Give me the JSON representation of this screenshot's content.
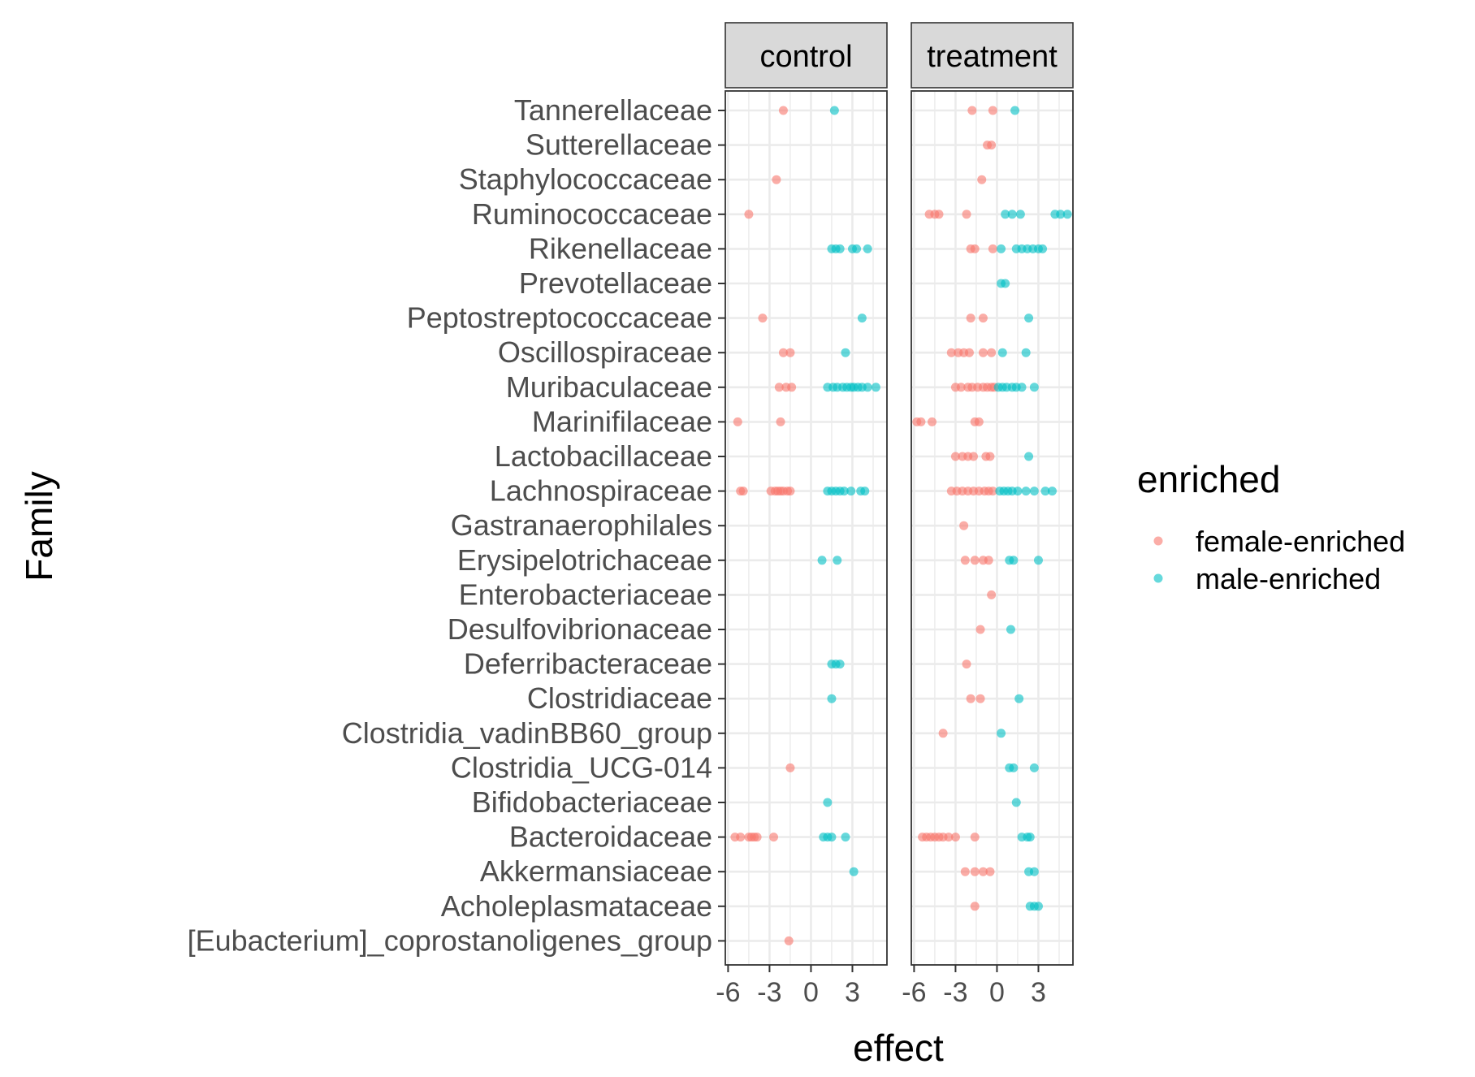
{
  "chart_data": {
    "type": "scatter",
    "xlabel": "effect",
    "ylabel": "Family",
    "xlim": [
      -6.2,
      5.5
    ],
    "x_ticks": [
      -6,
      -3,
      0,
      3
    ],
    "x_tick_labels": [
      "-6",
      "-3",
      "0",
      "3"
    ],
    "grid": true,
    "legend_position": "right",
    "legend": {
      "title": "enriched",
      "entries": [
        {
          "label": "female-enriched",
          "color": "#F8766D"
        },
        {
          "label": "male-enriched",
          "color": "#00BFC4"
        }
      ]
    },
    "categories": [
      "Tannerellaceae",
      "Sutterellaceae",
      "Staphylococcaceae",
      "Ruminococcaceae",
      "Rikenellaceae",
      "Prevotellaceae",
      "Peptostreptococcaceae",
      "Oscillospiraceae",
      "Muribaculaceae",
      "Marinifilaceae",
      "Lactobacillaceae",
      "Lachnospiraceae",
      "Gastranaerophilales",
      "Erysipelotrichaceae",
      "Enterobacteriaceae",
      "Desulfovibrionaceae",
      "Deferribacteraceae",
      "Clostridiaceae",
      "Clostridia_vadinBB60_group",
      "Clostridia_UCG-014",
      "Bifidobacteriaceae",
      "Bacteroidaceae",
      "Akkermansiaceae",
      "Acholeplasmataceae",
      "[Eubacterium]_coprostanoligenes_group"
    ],
    "facets": [
      {
        "label": "control",
        "female": [
          [
            "Tannerellaceae",
            -2.0
          ],
          [
            "Staphylococcaceae",
            -2.5
          ],
          [
            "Ruminococcaceae",
            -4.5
          ],
          [
            "Peptostreptococcaceae",
            -3.5
          ],
          [
            "Oscillospiraceae",
            -2.0
          ],
          [
            "Oscillospiraceae",
            -1.5
          ],
          [
            "Muribaculaceae",
            -2.3
          ],
          [
            "Muribaculaceae",
            -1.8
          ],
          [
            "Muribaculaceae",
            -1.4
          ],
          [
            "Marinifilaceae",
            -5.3
          ],
          [
            "Marinifilaceae",
            -2.2
          ],
          [
            "Lachnospiraceae",
            -5.1
          ],
          [
            "Lachnospiraceae",
            -4.9
          ],
          [
            "Lachnospiraceae",
            -2.9
          ],
          [
            "Lachnospiraceae",
            -2.6
          ],
          [
            "Lachnospiraceae",
            -2.4
          ],
          [
            "Lachnospiraceae",
            -2.2
          ],
          [
            "Lachnospiraceae",
            -2.0
          ],
          [
            "Lachnospiraceae",
            -1.7
          ],
          [
            "Lachnospiraceae",
            -1.5
          ],
          [
            "Clostridia_UCG-014",
            -1.5
          ],
          [
            "Bacteroidaceae",
            -5.5
          ],
          [
            "Bacteroidaceae",
            -5.1
          ],
          [
            "Bacteroidaceae",
            -4.5
          ],
          [
            "Bacteroidaceae",
            -4.3
          ],
          [
            "Bacteroidaceae",
            -4.1
          ],
          [
            "Bacteroidaceae",
            -3.9
          ],
          [
            "Bacteroidaceae",
            -2.7
          ],
          [
            "[Eubacterium]_coprostanoligenes_group",
            -1.6
          ]
        ],
        "male": [
          [
            "Tannerellaceae",
            1.7
          ],
          [
            "Rikenellaceae",
            1.5
          ],
          [
            "Rikenellaceae",
            1.8
          ],
          [
            "Rikenellaceae",
            2.1
          ],
          [
            "Rikenellaceae",
            3.0
          ],
          [
            "Rikenellaceae",
            3.3
          ],
          [
            "Rikenellaceae",
            4.1
          ],
          [
            "Peptostreptococcaceae",
            3.7
          ],
          [
            "Oscillospiraceae",
            2.5
          ],
          [
            "Muribaculaceae",
            1.2
          ],
          [
            "Muribaculaceae",
            1.6
          ],
          [
            "Muribaculaceae",
            1.9
          ],
          [
            "Muribaculaceae",
            2.3
          ],
          [
            "Muribaculaceae",
            2.6
          ],
          [
            "Muribaculaceae",
            2.9
          ],
          [
            "Muribaculaceae",
            3.1
          ],
          [
            "Muribaculaceae",
            3.4
          ],
          [
            "Muribaculaceae",
            3.7
          ],
          [
            "Muribaculaceae",
            4.1
          ],
          [
            "Muribaculaceae",
            4.7
          ],
          [
            "Lachnospiraceae",
            1.2
          ],
          [
            "Lachnospiraceae",
            1.5
          ],
          [
            "Lachnospiraceae",
            1.8
          ],
          [
            "Lachnospiraceae",
            2.1
          ],
          [
            "Lachnospiraceae",
            2.4
          ],
          [
            "Lachnospiraceae",
            2.9
          ],
          [
            "Lachnospiraceae",
            3.6
          ],
          [
            "Lachnospiraceae",
            3.9
          ],
          [
            "Erysipelotrichaceae",
            0.8
          ],
          [
            "Erysipelotrichaceae",
            1.9
          ],
          [
            "Deferribacteraceae",
            1.5
          ],
          [
            "Deferribacteraceae",
            1.8
          ],
          [
            "Deferribacteraceae",
            2.1
          ],
          [
            "Clostridiaceae",
            1.5
          ],
          [
            "Bifidobacteriaceae",
            1.2
          ],
          [
            "Bacteroidaceae",
            0.9
          ],
          [
            "Bacteroidaceae",
            1.2
          ],
          [
            "Bacteroidaceae",
            1.5
          ],
          [
            "Bacteroidaceae",
            2.5
          ],
          [
            "Akkermansiaceae",
            3.1
          ]
        ]
      },
      {
        "label": "treatment",
        "female": [
          [
            "Tannerellaceae",
            -1.8
          ],
          [
            "Tannerellaceae",
            -0.3
          ],
          [
            "Sutterellaceae",
            -0.7
          ],
          [
            "Sutterellaceae",
            -0.4
          ],
          [
            "Staphylococcaceae",
            -1.1
          ],
          [
            "Ruminococcaceae",
            -4.9
          ],
          [
            "Ruminococcaceae",
            -4.5
          ],
          [
            "Ruminococcaceae",
            -4.2
          ],
          [
            "Ruminococcaceae",
            -2.2
          ],
          [
            "Rikenellaceae",
            -1.9
          ],
          [
            "Rikenellaceae",
            -1.6
          ],
          [
            "Rikenellaceae",
            -0.3
          ],
          [
            "Peptostreptococcaceae",
            -1.9
          ],
          [
            "Peptostreptococcaceae",
            -1.0
          ],
          [
            "Oscillospiraceae",
            -3.3
          ],
          [
            "Oscillospiraceae",
            -2.8
          ],
          [
            "Oscillospiraceae",
            -2.4
          ],
          [
            "Oscillospiraceae",
            -2.0
          ],
          [
            "Oscillospiraceae",
            -1.0
          ],
          [
            "Oscillospiraceae",
            -0.4
          ],
          [
            "Muribaculaceae",
            -3.0
          ],
          [
            "Muribaculaceae",
            -2.6
          ],
          [
            "Muribaculaceae",
            -2.1
          ],
          [
            "Muribaculaceae",
            -1.8
          ],
          [
            "Muribaculaceae",
            -1.4
          ],
          [
            "Muribaculaceae",
            -1.0
          ],
          [
            "Muribaculaceae",
            -0.7
          ],
          [
            "Muribaculaceae",
            -0.4
          ],
          [
            "Muribaculaceae",
            -0.2
          ],
          [
            "Marinifilaceae",
            -5.8
          ],
          [
            "Marinifilaceae",
            -5.5
          ],
          [
            "Marinifilaceae",
            -4.7
          ],
          [
            "Marinifilaceae",
            -1.6
          ],
          [
            "Marinifilaceae",
            -1.3
          ],
          [
            "Lactobacillaceae",
            -3.0
          ],
          [
            "Lactobacillaceae",
            -2.5
          ],
          [
            "Lactobacillaceae",
            -2.1
          ],
          [
            "Lactobacillaceae",
            -1.7
          ],
          [
            "Lactobacillaceae",
            -0.8
          ],
          [
            "Lactobacillaceae",
            -0.5
          ],
          [
            "Lachnospiraceae",
            -3.3
          ],
          [
            "Lachnospiraceae",
            -2.9
          ],
          [
            "Lachnospiraceae",
            -2.5
          ],
          [
            "Lachnospiraceae",
            -2.1
          ],
          [
            "Lachnospiraceae",
            -1.7
          ],
          [
            "Lachnospiraceae",
            -1.3
          ],
          [
            "Lachnospiraceae",
            -0.9
          ],
          [
            "Lachnospiraceae",
            -0.6
          ],
          [
            "Lachnospiraceae",
            -0.3
          ],
          [
            "Gastranaerophilales",
            -2.4
          ],
          [
            "Erysipelotrichaceae",
            -2.3
          ],
          [
            "Erysipelotrichaceae",
            -1.6
          ],
          [
            "Erysipelotrichaceae",
            -1.0
          ],
          [
            "Erysipelotrichaceae",
            -0.6
          ],
          [
            "Enterobacteriaceae",
            -0.4
          ],
          [
            "Desulfovibrionaceae",
            -1.2
          ],
          [
            "Deferribacteraceae",
            -2.2
          ],
          [
            "Clostridiaceae",
            -1.9
          ],
          [
            "Clostridiaceae",
            -1.2
          ],
          [
            "Clostridia_vadinBB60_group",
            -3.9
          ],
          [
            "Bacteroidaceae",
            -5.4
          ],
          [
            "Bacteroidaceae",
            -5.1
          ],
          [
            "Bacteroidaceae",
            -4.8
          ],
          [
            "Bacteroidaceae",
            -4.5
          ],
          [
            "Bacteroidaceae",
            -4.2
          ],
          [
            "Bacteroidaceae",
            -3.9
          ],
          [
            "Bacteroidaceae",
            -3.5
          ],
          [
            "Bacteroidaceae",
            -3.0
          ],
          [
            "Bacteroidaceae",
            -1.6
          ],
          [
            "Akkermansiaceae",
            -2.3
          ],
          [
            "Akkermansiaceae",
            -1.6
          ],
          [
            "Akkermansiaceae",
            -1.0
          ],
          [
            "Akkermansiaceae",
            -0.5
          ],
          [
            "Acholeplasmataceae",
            -1.6
          ]
        ],
        "male": [
          [
            "Tannerellaceae",
            1.3
          ],
          [
            "Ruminococcaceae",
            0.6
          ],
          [
            "Ruminococcaceae",
            1.1
          ],
          [
            "Ruminococcaceae",
            1.7
          ],
          [
            "Ruminococcaceae",
            4.2
          ],
          [
            "Ruminococcaceae",
            4.6
          ],
          [
            "Ruminococcaceae",
            5.1
          ],
          [
            "Rikenellaceae",
            0.3
          ],
          [
            "Rikenellaceae",
            1.4
          ],
          [
            "Rikenellaceae",
            1.8
          ],
          [
            "Rikenellaceae",
            2.2
          ],
          [
            "Rikenellaceae",
            2.6
          ],
          [
            "Rikenellaceae",
            3.0
          ],
          [
            "Rikenellaceae",
            3.3
          ],
          [
            "Prevotellaceae",
            0.3
          ],
          [
            "Prevotellaceae",
            0.6
          ],
          [
            "Peptostreptococcaceae",
            2.3
          ],
          [
            "Oscillospiraceae",
            0.4
          ],
          [
            "Oscillospiraceae",
            2.1
          ],
          [
            "Muribaculaceae",
            0.1
          ],
          [
            "Muribaculaceae",
            0.4
          ],
          [
            "Muribaculaceae",
            0.7
          ],
          [
            "Muribaculaceae",
            1.1
          ],
          [
            "Muribaculaceae",
            1.4
          ],
          [
            "Muribaculaceae",
            1.8
          ],
          [
            "Muribaculaceae",
            2.7
          ],
          [
            "Lactobacillaceae",
            2.3
          ],
          [
            "Lachnospiraceae",
            0.2
          ],
          [
            "Lachnospiraceae",
            0.5
          ],
          [
            "Lachnospiraceae",
            0.8
          ],
          [
            "Lachnospiraceae",
            1.1
          ],
          [
            "Lachnospiraceae",
            1.5
          ],
          [
            "Lachnospiraceae",
            2.1
          ],
          [
            "Lachnospiraceae",
            2.7
          ],
          [
            "Lachnospiraceae",
            3.5
          ],
          [
            "Lachnospiraceae",
            4.0
          ],
          [
            "Erysipelotrichaceae",
            0.9
          ],
          [
            "Erysipelotrichaceae",
            1.2
          ],
          [
            "Erysipelotrichaceae",
            3.0
          ],
          [
            "Desulfovibrionaceae",
            1.0
          ],
          [
            "Clostridiaceae",
            1.6
          ],
          [
            "Clostridia_vadinBB60_group",
            0.3
          ],
          [
            "Clostridia_UCG-014",
            0.9
          ],
          [
            "Clostridia_UCG-014",
            1.2
          ],
          [
            "Clostridia_UCG-014",
            2.7
          ],
          [
            "Bifidobacteriaceae",
            1.4
          ],
          [
            "Bacteroidaceae",
            1.8
          ],
          [
            "Bacteroidaceae",
            2.2
          ],
          [
            "Bacteroidaceae",
            2.4
          ],
          [
            "Akkermansiaceae",
            2.3
          ],
          [
            "Akkermansiaceae",
            2.7
          ],
          [
            "Acholeplasmataceae",
            2.4
          ],
          [
            "Acholeplasmataceae",
            2.7
          ],
          [
            "Acholeplasmataceae",
            3.0
          ]
        ]
      }
    ]
  }
}
